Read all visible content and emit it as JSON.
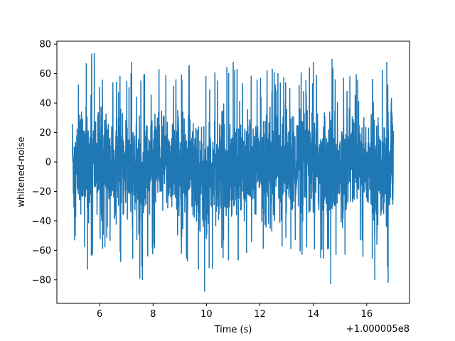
{
  "chart_data": {
    "type": "line",
    "title": "",
    "xlabel": "Time (s)",
    "ylabel": "whitened-noise",
    "x_offset_label": "+1.000005e8",
    "xlim": [
      4.4,
      17.6
    ],
    "ylim": [
      -96,
      82
    ],
    "xticks": [
      6,
      8,
      10,
      12,
      14,
      16
    ],
    "yticks": [
      -80,
      -60,
      -40,
      -20,
      0,
      20,
      40,
      60,
      80
    ],
    "grid": false,
    "line_color": "#1f77b4",
    "series": [
      {
        "x_start": 4.98,
        "x_end": 17.0,
        "envelope_x": [
          4.98,
          5.0,
          5.1,
          5.3,
          5.5,
          5.7,
          6.0,
          6.5,
          7.0,
          7.5,
          8.0,
          8.5,
          9.0,
          9.5,
          10.0,
          10.5,
          11.0,
          11.5,
          12.0,
          12.5,
          13.0,
          13.5,
          14.0,
          14.5,
          15.0,
          15.5,
          16.0,
          16.5,
          16.8,
          16.95,
          17.0
        ],
        "envelope_upper": [
          30,
          46,
          45,
          68,
          67,
          74,
          58,
          55,
          65,
          62,
          66,
          62,
          64,
          67,
          60,
          65,
          68,
          60,
          62,
          64,
          60,
          63,
          65,
          67,
          62,
          65,
          63,
          68,
          60,
          40,
          27
        ],
        "envelope_lower": [
          -14,
          -51,
          -57,
          -62,
          -73,
          -68,
          -58,
          -66,
          -73,
          -80,
          -62,
          -66,
          -64,
          -77,
          -88,
          -70,
          -72,
          -68,
          -62,
          -68,
          -63,
          -64,
          -66,
          -70,
          -67,
          -60,
          -67,
          -80,
          -82,
          -55,
          -30
        ],
        "sigma": 17
      }
    ],
    "notable_spikes": [
      {
        "x": 5.5,
        "y": 67
      },
      {
        "x": 5.8,
        "y": 74
      },
      {
        "x": 5.55,
        "y": -73
      },
      {
        "x": 6.2,
        "y": -58
      },
      {
        "x": 7.2,
        "y": 68
      },
      {
        "x": 7.6,
        "y": -80
      },
      {
        "x": 9.7,
        "y": -73
      },
      {
        "x": 9.93,
        "y": -88
      },
      {
        "x": 10.1,
        "y": -72
      },
      {
        "x": 11.0,
        "y": 68
      },
      {
        "x": 14.0,
        "y": 68
      },
      {
        "x": 14.65,
        "y": -83
      },
      {
        "x": 14.7,
        "y": 70
      },
      {
        "x": 16.3,
        "y": -80
      },
      {
        "x": 16.8,
        "y": -82
      },
      {
        "x": 16.75,
        "y": 68
      }
    ]
  }
}
